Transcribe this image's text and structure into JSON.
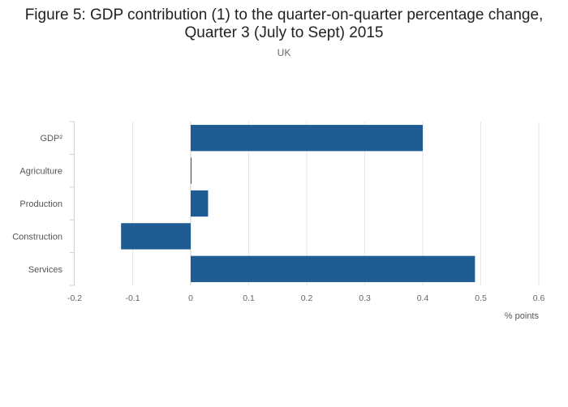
{
  "chart_data": {
    "type": "bar",
    "orientation": "horizontal",
    "title_line1": "Figure 5: GDP contribution (1) to the quarter-on-quarter percentage change,",
    "title_line2": "Quarter 3 (July to Sept) 2015",
    "subtitle": "UK",
    "xlabel": "% points",
    "ylabel": "",
    "xlim": [
      -0.2,
      0.6
    ],
    "xticks": [
      -0.2,
      -0.1,
      0,
      0.1,
      0.2,
      0.3,
      0.4,
      0.5,
      0.6
    ],
    "xtick_labels": [
      "-0.2",
      "-0.1",
      "0",
      "0.1",
      "0.2",
      "0.3",
      "0.4",
      "0.5",
      "0.6"
    ],
    "categories": [
      "GDP²",
      "Agriculture",
      "Production",
      "Construction",
      "Services"
    ],
    "values": [
      0.4,
      0.0,
      0.03,
      -0.12,
      0.49
    ],
    "grid": true,
    "legend": "none",
    "colors": {
      "bar": "#1f5c94",
      "grid": "#e6e6e6",
      "axis": "#c8d0dc"
    }
  }
}
